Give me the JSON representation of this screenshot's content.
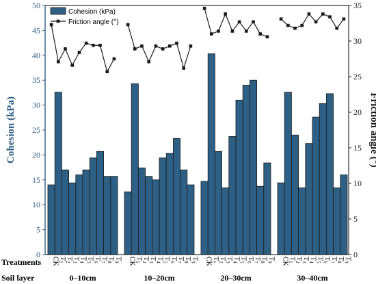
{
  "chart_data": {
    "type": "bar",
    "groups": [
      "0–10cm",
      "10–20cm",
      "20–30cm",
      "30–40cm"
    ],
    "categories": [
      "CK",
      "T1",
      "T2",
      "T3",
      "T4",
      "T5",
      "T6",
      "T7",
      "T8",
      "T9"
    ],
    "series": [
      {
        "name": "Cohesion (kPa)",
        "type": "bar",
        "axis": "left",
        "values": [
          [
            14.0,
            32.6,
            17.0,
            14.4,
            16.0,
            17.0,
            19.4,
            20.7,
            15.7,
            15.7
          ],
          [
            12.6,
            34.3,
            17.4,
            15.7,
            15.0,
            19.4,
            20.3,
            23.3,
            17.0,
            14.0
          ],
          [
            14.7,
            40.3,
            20.7,
            13.4,
            23.7,
            31.0,
            34.0,
            35.0,
            13.7,
            18.4
          ],
          [
            14.4,
            32.6,
            24.0,
            13.4,
            22.3,
            27.6,
            30.3,
            32.3,
            13.4,
            16.0
          ]
        ]
      },
      {
        "name": "Friction angle (°)",
        "type": "line",
        "axis": "right",
        "values": [
          [
            32.3,
            27.1,
            28.9,
            26.6,
            28.4,
            29.7,
            29.4,
            29.4,
            25.7,
            27.5
          ],
          [
            32.3,
            28.9,
            29.3,
            27.1,
            29.3,
            28.9,
            29.3,
            29.7,
            26.2,
            29.3
          ],
          [
            34.6,
            31.0,
            31.4,
            33.8,
            31.4,
            32.7,
            31.4,
            32.7,
            31.0,
            30.6
          ],
          [
            33.1,
            32.2,
            31.8,
            32.2,
            33.8,
            32.7,
            33.8,
            33.4,
            31.8,
            33.1
          ]
        ]
      }
    ],
    "ylabel": "Cohesion (kPa)",
    "y2label": "Friction angle (°)",
    "ylim": [
      0,
      50
    ],
    "y2lim": [
      0,
      35
    ],
    "yticks": [
      0,
      5,
      10,
      15,
      20,
      25,
      30,
      35,
      40,
      45,
      50
    ],
    "y2ticks": [
      0,
      5,
      10,
      15,
      20,
      25,
      30,
      35
    ],
    "legend": {
      "placement": "top-left"
    },
    "grid": false,
    "row_labels": {
      "treatments": "Treatments",
      "soil_layer": "Soil layer"
    }
  },
  "colors": {
    "bar_fill": "#2e5f85",
    "bar_edge": "#1a1a1a",
    "left_axis": "#2e5f85",
    "right_axis": "#1a1a1a",
    "line": "#1a1a1a"
  }
}
